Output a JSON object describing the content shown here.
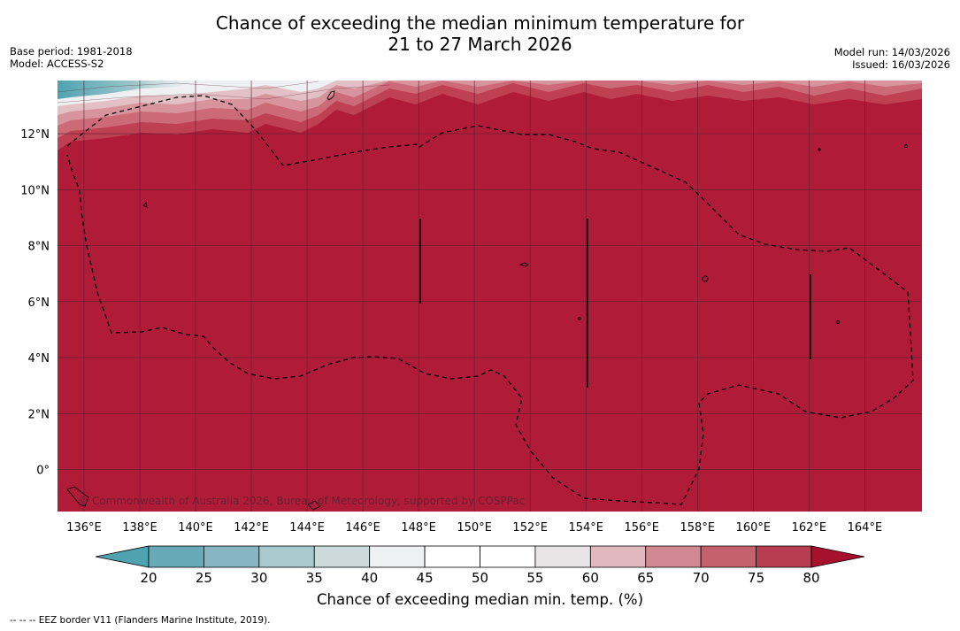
{
  "title_line1": "Chance of exceeding the median minimum temperature for",
  "title_line2": "21 to 27 March 2026",
  "meta_left": {
    "base_period": "Base period: 1981-2018",
    "model": "Model: ACCESS-S2"
  },
  "meta_right": {
    "model_run": "Model run: 14/03/2026",
    "issued": "Issued: 16/03/2026"
  },
  "map": {
    "lon_ticks": [
      "136°E",
      "138°E",
      "140°E",
      "142°E",
      "144°E",
      "146°E",
      "148°E",
      "150°E",
      "152°E",
      "154°E",
      "156°E",
      "158°E",
      "160°E",
      "162°E",
      "164°E"
    ],
    "lon_values": [
      136,
      138,
      140,
      142,
      144,
      146,
      148,
      150,
      152,
      154,
      156,
      158,
      160,
      162,
      164
    ],
    "lat_ticks": [
      "12°N",
      "10°N",
      "8°N",
      "6°N",
      "4°N",
      "2°N",
      "0°"
    ],
    "lat_values": [
      12,
      10,
      8,
      6,
      4,
      2,
      0
    ],
    "lon_range": [
      135.05,
      166.05
    ],
    "lat_range": [
      -1.5,
      13.9
    ],
    "copyright": "© Commonwealth of Australia 2026, Bureau of Meteorology, supported by COSPPac",
    "dominant_class": "80+",
    "colors": {
      "ocean_high": "#b01c37",
      "grid": "#5a2030",
      "land": "#000000"
    }
  },
  "colorbar": {
    "ticks": [
      "20",
      "25",
      "30",
      "35",
      "40",
      "45",
      "50",
      "55",
      "60",
      "65",
      "70",
      "75",
      "80"
    ],
    "colors": [
      "#67a9b6",
      "#86b6c2",
      "#a8c9ce",
      "#ccdadc",
      "#eef1f2",
      "#ffffff",
      "#ffffff",
      "#e9e4e5",
      "#e0b8bd",
      "#d18a93",
      "#c5606d",
      "#b83d50"
    ],
    "under_color": "#4fa3b1",
    "over_color": "#a6112e",
    "label": "Chance of exceeding median min. temp. (%)"
  },
  "footnote": "--  --  -- EEZ border V11 (Flanders Marine Institute, 2019)."
}
